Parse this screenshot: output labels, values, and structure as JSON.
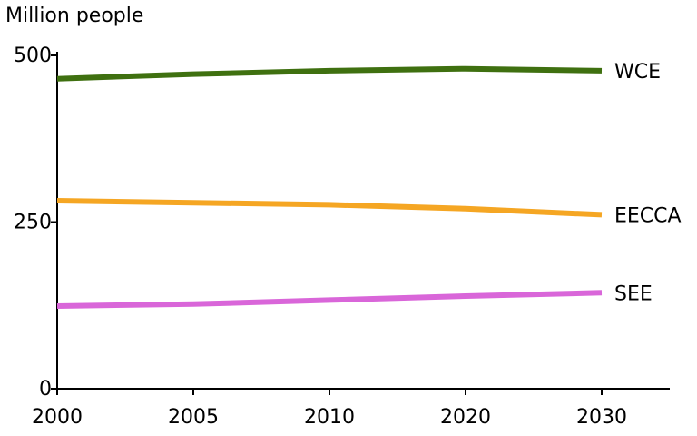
{
  "chart_data": {
    "type": "line",
    "ylabel": "Million people",
    "xlabel": "",
    "categories": [
      "2000",
      "2005",
      "2010",
      "2020",
      "2030"
    ],
    "ylim": [
      0,
      500
    ],
    "y_ticks": [
      "0",
      "250",
      "500"
    ],
    "grid": false,
    "legend": "inline-right",
    "series": [
      {
        "name": "WCE",
        "color": "#3f7010",
        "values": [
          465,
          472,
          477,
          480,
          477
        ]
      },
      {
        "name": "EECCA",
        "color": "#f5a623",
        "values": [
          282,
          279,
          276,
          270,
          261
        ]
      },
      {
        "name": "SEE",
        "color": "#d966d9",
        "values": [
          124,
          127,
          133,
          139,
          144
        ]
      }
    ]
  }
}
